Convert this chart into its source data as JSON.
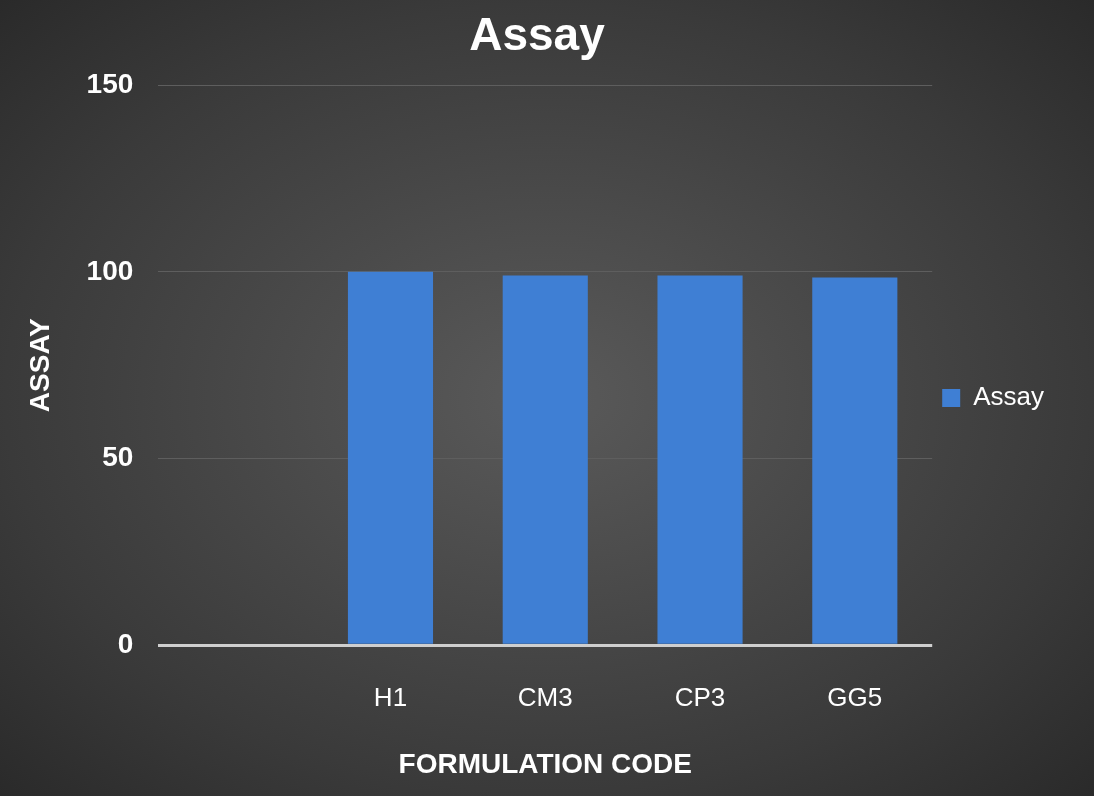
{
  "chart_data": {
    "type": "bar",
    "title": "Assay",
    "xlabel": "FORMULATION CODE",
    "ylabel": "ASSAY",
    "categories": [
      null,
      "H1",
      "CM3",
      "CP3",
      "GG5"
    ],
    "series": [
      {
        "name": "Assay",
        "color": "#3f7fd4",
        "values": [
          null,
          100,
          99,
          99,
          98.5
        ]
      }
    ],
    "ylim": [
      0,
      150
    ],
    "yticks": [
      0,
      50,
      100,
      150
    ],
    "grid": "y",
    "legend": "right"
  }
}
